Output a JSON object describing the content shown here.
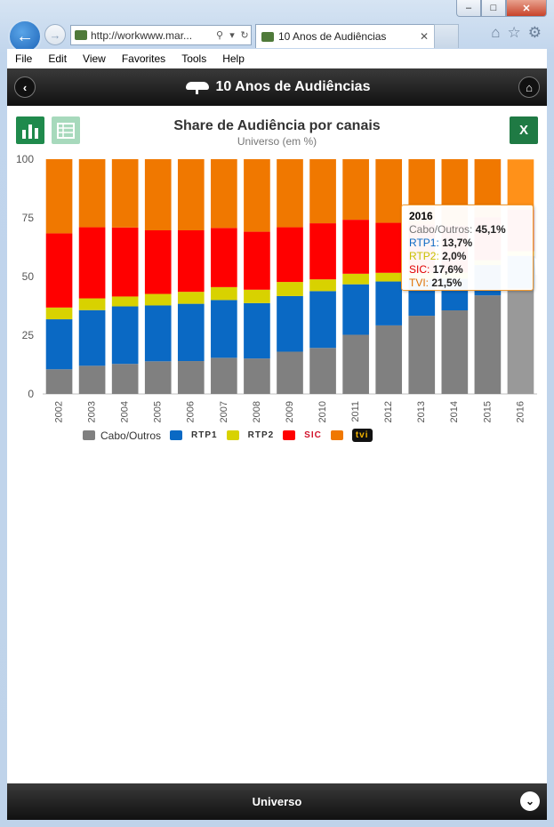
{
  "browser": {
    "url": "http://workwww.mar...",
    "tab_title": "10 Anos de Audiências",
    "menu": [
      "File",
      "Edit",
      "View",
      "Favorites",
      "Tools",
      "Help"
    ]
  },
  "app": {
    "title": "10 Anos de Audiências",
    "xls_label": "X",
    "bottom_label": "Universo"
  },
  "chart_data": {
    "type": "bar",
    "stacked": true,
    "title": "Share de Audiência por canais",
    "subtitle": "Universo (em %)",
    "ylim": [
      0,
      100
    ],
    "yticks": [
      0,
      25,
      50,
      75,
      100
    ],
    "categories": [
      "2002",
      "2003",
      "2004",
      "2005",
      "2006",
      "2007",
      "2008",
      "2009",
      "2010",
      "2011",
      "2012",
      "2013",
      "2014",
      "2015",
      "2016"
    ],
    "series": [
      {
        "name": "Cabo/Outros",
        "color": "#808080",
        "values": [
          10.5,
          12,
          12.8,
          13.9,
          14,
          15.4,
          15.1,
          18,
          19.6,
          25.2,
          29.2,
          33.3,
          35.6,
          42,
          45.1
        ]
      },
      {
        "name": "RTP1",
        "color": "#0a69c4",
        "values": [
          21.3,
          23.7,
          24.5,
          23.8,
          24.4,
          24.6,
          23.6,
          23.7,
          24.2,
          21.5,
          18.7,
          15.5,
          13.5,
          12.9,
          13.7
        ]
      },
      {
        "name": "RTP2",
        "color": "#d8d200",
        "values": [
          5,
          5,
          4.2,
          4.9,
          5.1,
          5.5,
          5.7,
          6,
          5,
          4.5,
          3.7,
          3,
          2.6,
          2.1,
          2
        ]
      },
      {
        "name": "SIC",
        "color": "#ff0000",
        "values": [
          31.6,
          30.3,
          29.4,
          27.1,
          26.2,
          25.2,
          24.7,
          23.3,
          23.9,
          23,
          21.3,
          20.4,
          20,
          18.3,
          17.6
        ]
      },
      {
        "name": "TVI",
        "color": "#f07800",
        "values": [
          31.6,
          29,
          29.1,
          30.3,
          30.3,
          29.3,
          30.9,
          29,
          27.3,
          25.8,
          27.1,
          27.8,
          28.3,
          24.7,
          21.5
        ]
      }
    ],
    "legend": [
      {
        "name": "Cabo/Outros",
        "color": "#808080",
        "text": "Cabo/Outros",
        "logo": ""
      },
      {
        "name": "RTP1",
        "color": "#0a69c4",
        "text": "",
        "logo": "RTP1"
      },
      {
        "name": "RTP2",
        "color": "#d8d200",
        "text": "",
        "logo": "RTP2"
      },
      {
        "name": "SIC",
        "color": "#ff0000",
        "text": "",
        "logo": "SIC"
      },
      {
        "name": "TVI",
        "color": "#f07800",
        "text": "",
        "logo": "tvi"
      }
    ],
    "highlight_index": 14,
    "tooltip": {
      "year": "2016",
      "rows": [
        {
          "label": "Cabo/Outros",
          "value": "45,1%",
          "color": "#777777"
        },
        {
          "label": "RTP1",
          "value": "13,7%",
          "color": "#0a69c4"
        },
        {
          "label": "RTP2",
          "value": "2,0%",
          "color": "#c8c000"
        },
        {
          "label": "SIC",
          "value": "17,6%",
          "color": "#e00000"
        },
        {
          "label": "TVI",
          "value": "21,5%",
          "color": "#e07000"
        }
      ]
    }
  }
}
